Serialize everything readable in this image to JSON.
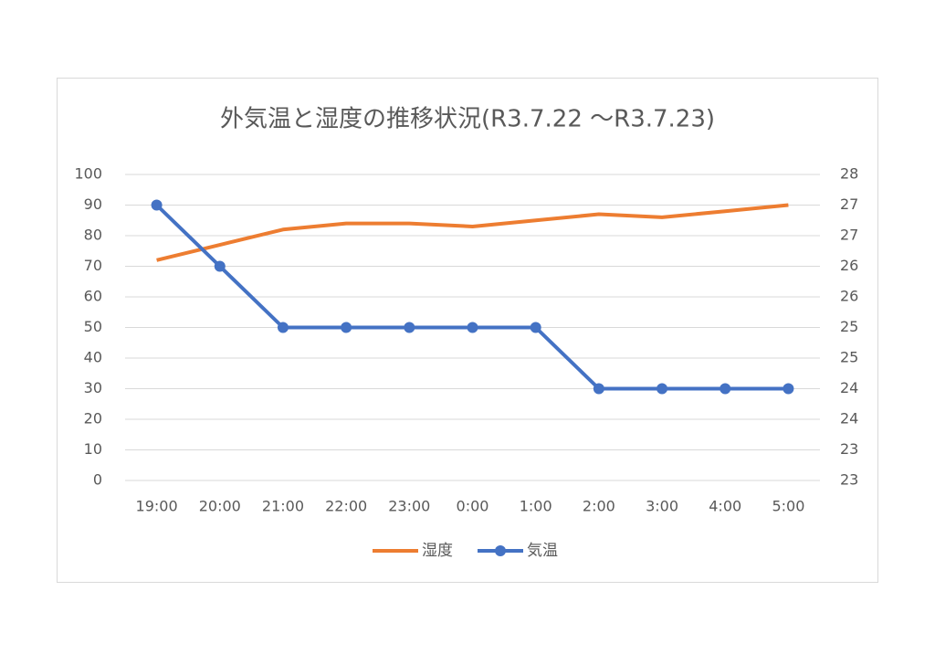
{
  "chart_data": {
    "type": "line",
    "title": "外気温と湿度の推移状況(R3.7.22 ～R3.7.23)",
    "categories": [
      "19:00",
      "20:00",
      "21:00",
      "22:00",
      "23:00",
      "0:00",
      "1:00",
      "2:00",
      "3:00",
      "4:00",
      "5:00"
    ],
    "series": [
      {
        "name": "湿度",
        "color": "#ed7d31",
        "values": [
          72,
          77,
          82,
          84,
          84,
          83,
          85,
          87,
          86,
          88,
          90
        ],
        "markers": false
      },
      {
        "name": "気温",
        "color": "#4472c4",
        "values": [
          27,
          26,
          25,
          25,
          25,
          25,
          25,
          24,
          24,
          24,
          24
        ],
        "axis": "y2",
        "markers": true
      }
    ],
    "ylim": [
      0,
      100
    ],
    "yticks": [
      0,
      10,
      20,
      30,
      40,
      50,
      60,
      70,
      80,
      90,
      100
    ],
    "y2lim": [
      22.5,
      27.5
    ],
    "y2ticks": [
      {
        "value": 22.5,
        "label": "23"
      },
      23,
      {
        "value": 23.5,
        "label": "24"
      },
      24,
      {
        "value": 24.5,
        "label": "25"
      },
      25,
      {
        "value": 25.5,
        "label": "26"
      },
      26,
      {
        "value": 26.5,
        "label": "27"
      },
      27,
      {
        "value": 27.5,
        "label": "28"
      }
    ],
    "grid": true,
    "legend": "bottom"
  }
}
